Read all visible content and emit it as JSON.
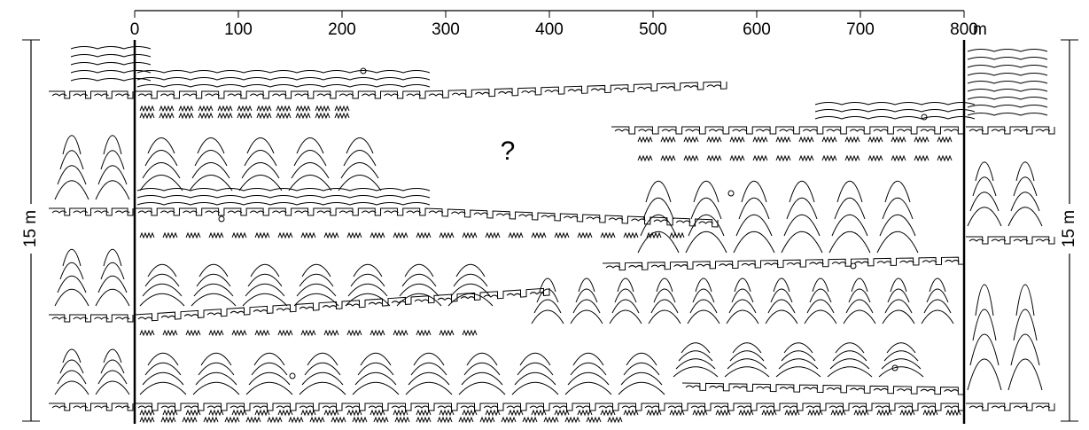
{
  "scale": {
    "ticks": [
      0,
      100,
      200,
      300,
      400,
      500,
      600,
      700,
      800
    ],
    "unit": "m"
  },
  "unknown_zone": "?",
  "thickness_labels": [
    "15 m",
    "15 m"
  ]
}
